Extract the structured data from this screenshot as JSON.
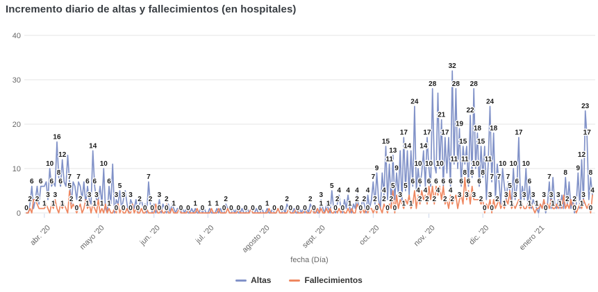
{
  "chart_data": {
    "type": "line",
    "title": "Incremento diario de altas y fallecimientos (en hospitales)",
    "xlabel": "fecha (Día)",
    "ylabel": "",
    "ylim": [
      0,
      40
    ],
    "yticks": [
      0,
      10,
      20,
      30,
      40
    ],
    "grid": true,
    "legend_position": "bottom",
    "grid_color": "#e6e6e6",
    "tick_color": "#ccd6eb",
    "axis_label_color": "#666666",
    "data_label_color": "#1b1b1b",
    "x_ticks": [
      {
        "label": "abr. '20",
        "index": 10
      },
      {
        "label": "mayo '20",
        "index": 40
      },
      {
        "label": "jun. '20",
        "index": 71
      },
      {
        "label": "jul. '20",
        "index": 101
      },
      {
        "label": "agosto '20",
        "index": 132
      },
      {
        "label": "sept. '20",
        "index": 163
      },
      {
        "label": "oct. '20",
        "index": 193
      },
      {
        "label": "nov. '20",
        "index": 224
      },
      {
        "label": "dic. '20",
        "index": 254
      },
      {
        "label": "enero '21",
        "index": 285
      }
    ],
    "series": [
      {
        "name": "Altas",
        "color": "#8192c8",
        "values": [
          0,
          0,
          2,
          6,
          1,
          3,
          6,
          2,
          6,
          6,
          6,
          7,
          3,
          10,
          6,
          7,
          6,
          16,
          8,
          6,
          12,
          7,
          6,
          13,
          7,
          2,
          7,
          6,
          3,
          7,
          6,
          3,
          7,
          2,
          6,
          3,
          2,
          14,
          6,
          3,
          3,
          6,
          2,
          10,
          1,
          0,
          6,
          2,
          11,
          0,
          3,
          2,
          5,
          1,
          3,
          5,
          2,
          0,
          3,
          2,
          1,
          3,
          0,
          2,
          3,
          1,
          2,
          0,
          7,
          2,
          0,
          2,
          0,
          1,
          3,
          0,
          2,
          1,
          0,
          2,
          0,
          2,
          1,
          0,
          1,
          1,
          0,
          1,
          0,
          1,
          0,
          0,
          1,
          0,
          1,
          0,
          0,
          1,
          0,
          1,
          0,
          0,
          1,
          0,
          0,
          0,
          1,
          0,
          1,
          0,
          0,
          2,
          1,
          0,
          0,
          1,
          0,
          1,
          0,
          0,
          1,
          0,
          0,
          1,
          0,
          1,
          0,
          0,
          1,
          0,
          0,
          1,
          0,
          0,
          1,
          0,
          0,
          1,
          0,
          0,
          1,
          0,
          0,
          1,
          0,
          2,
          1,
          0,
          0,
          1,
          0,
          0,
          1,
          0,
          1,
          0,
          1,
          0,
          2,
          1,
          0,
          1,
          0,
          0,
          3,
          1,
          0,
          2,
          1,
          0,
          5,
          1,
          0,
          2,
          4,
          1,
          0,
          3,
          1,
          4,
          1,
          0,
          2,
          1,
          4,
          1,
          0,
          3,
          2,
          0,
          4,
          1,
          3,
          7,
          2,
          9,
          3,
          1,
          9,
          4,
          15,
          3,
          11,
          2,
          13,
          3,
          9,
          4,
          14,
          2,
          17,
          5,
          14,
          4,
          14,
          6,
          24,
          5,
          10,
          6,
          9,
          14,
          6,
          17,
          10,
          6,
          28,
          11,
          9,
          27,
          10,
          21,
          6,
          17,
          9,
          17,
          6,
          32,
          11,
          28,
          10,
          19,
          6,
          15,
          11,
          15,
          6,
          22,
          8,
          28,
          10,
          18,
          6,
          15,
          8,
          15,
          3,
          11,
          24,
          7,
          18,
          3,
          11,
          7,
          2,
          10,
          6,
          3,
          7,
          5,
          2,
          10,
          3,
          6,
          17,
          2,
          6,
          3,
          10,
          2,
          6,
          1,
          3,
          2,
          1,
          0,
          2,
          1,
          3,
          0,
          2,
          7,
          1,
          8,
          2,
          1,
          3,
          1,
          4,
          1,
          8,
          2,
          7,
          1,
          3,
          0,
          2,
          9,
          1,
          12,
          2,
          23,
          17,
          3,
          8,
          4
        ]
      },
      {
        "name": "Fallecimientos",
        "color": "#ef8760",
        "values": [
          0,
          0,
          1,
          0,
          3,
          3,
          2,
          1,
          1,
          1,
          1,
          2,
          1,
          0,
          2,
          1,
          3,
          1,
          0,
          2,
          1,
          2,
          1,
          0,
          5,
          1,
          2,
          1,
          0,
          1,
          2,
          0,
          1,
          3,
          1,
          2,
          0,
          2,
          1,
          0,
          3,
          0,
          1,
          0,
          2,
          0,
          1,
          0,
          0,
          1,
          0,
          2,
          0,
          1,
          0,
          0,
          1,
          0,
          0,
          2,
          0,
          1,
          0,
          0,
          1,
          0,
          0,
          1,
          0,
          0,
          0,
          0,
          2,
          0,
          0,
          1,
          0,
          0,
          2,
          0,
          0,
          1,
          0,
          0,
          0,
          1,
          0,
          0,
          0,
          0,
          1,
          0,
          0,
          0,
          0,
          1,
          0,
          0,
          0,
          0,
          0,
          0,
          0,
          1,
          0,
          0,
          0,
          1,
          0,
          0,
          0,
          0,
          1,
          0,
          0,
          0,
          0,
          0,
          1,
          0,
          0,
          0,
          0,
          0,
          0,
          1,
          0,
          0,
          0,
          0,
          0,
          0,
          0,
          0,
          0,
          1,
          0,
          0,
          0,
          0,
          1,
          0,
          0,
          0,
          0,
          0,
          1,
          0,
          0,
          0,
          1,
          0,
          0,
          0,
          0,
          1,
          0,
          0,
          0,
          1,
          0,
          0,
          1,
          0,
          1,
          0,
          0,
          1,
          0,
          1,
          0,
          0,
          1,
          0,
          1,
          0,
          1,
          0,
          0,
          1,
          0,
          1,
          0,
          0,
          2,
          1,
          0,
          1,
          0,
          1,
          0,
          1,
          1,
          0,
          1,
          0,
          2,
          1,
          0,
          2,
          1,
          0,
          2,
          1,
          5,
          0,
          4,
          1,
          3,
          2,
          1,
          3,
          2,
          4,
          1,
          2,
          5,
          1,
          4,
          2,
          5,
          3,
          4,
          2,
          6,
          3,
          6,
          2,
          6,
          4,
          6,
          3,
          6,
          2,
          3,
          1,
          4,
          2,
          3,
          4,
          1,
          3,
          4,
          2,
          8,
          3,
          5,
          2,
          6,
          3,
          3,
          3,
          3,
          2,
          3,
          0,
          2,
          1,
          3,
          0,
          3,
          1,
          2,
          3,
          1,
          2,
          1,
          3,
          2,
          5,
          1,
          2,
          1,
          2,
          3,
          1,
          2,
          1,
          1,
          2,
          1,
          2,
          1,
          0,
          1,
          1,
          2,
          1,
          3,
          1,
          2,
          1,
          3,
          1,
          1,
          2,
          1,
          3,
          1,
          4,
          1,
          2,
          1,
          3,
          1,
          2,
          0,
          1,
          2,
          1,
          3,
          2,
          1,
          2,
          0,
          4
        ]
      }
    ]
  },
  "legend": {
    "items": [
      {
        "label": "Altas",
        "color": "#8192c8"
      },
      {
        "label": "Fallecimientos",
        "color": "#ef8760"
      }
    ]
  }
}
